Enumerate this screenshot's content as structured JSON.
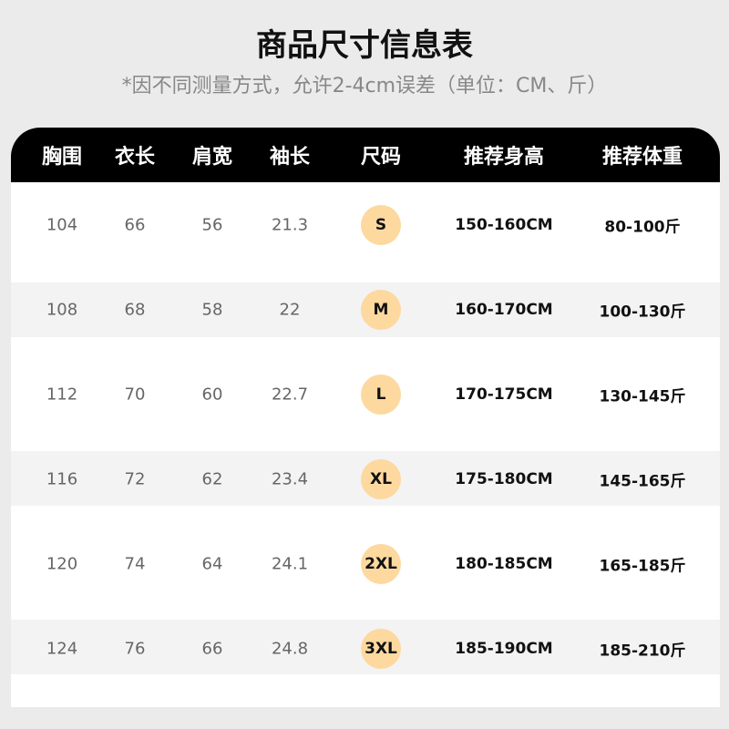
{
  "title": "商品尺寸信息表",
  "subtitle": "*因不同测量方式，允许2-4cm误差（单位：CM、斤）",
  "badge_color": "#fdd9a0",
  "headers": [
    "胸围",
    "衣长",
    "肩宽",
    "袖长",
    "尺码",
    "推荐身高",
    "推荐体重"
  ],
  "rows": [
    [
      "104",
      "66",
      "56",
      "21.3",
      "S",
      "150-160CM",
      "80-100斤"
    ],
    [
      "108",
      "68",
      "58",
      "22",
      "M",
      "160-170CM",
      "100-130斤"
    ],
    [
      "112",
      "70",
      "60",
      "22.7",
      "L",
      "170-175CM",
      "130-145斤"
    ],
    [
      "116",
      "72",
      "62",
      "23.4",
      "XL",
      "175-180CM",
      "145-165斤"
    ],
    [
      "120",
      "74",
      "64",
      "24.1",
      "2XL",
      "180-185CM",
      "165-185斤"
    ],
    [
      "124",
      "76",
      "66",
      "24.8",
      "3XL",
      "185-190CM",
      "185-210斤"
    ]
  ]
}
